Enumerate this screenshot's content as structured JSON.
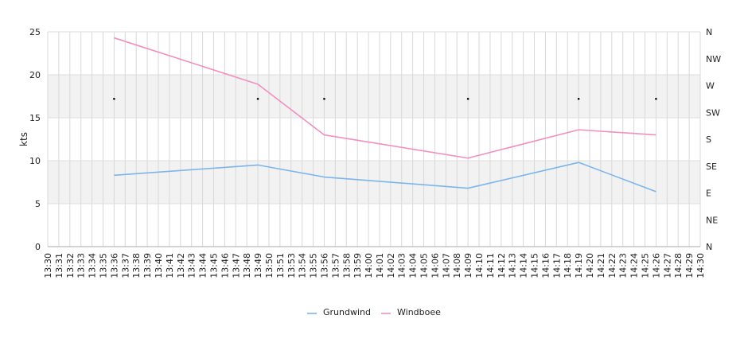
{
  "chart_data": {
    "type": "line",
    "ylabel": "kts",
    "ylim": [
      0,
      25
    ],
    "y_ticks": [
      0,
      5,
      10,
      15,
      20,
      25
    ],
    "right_axis_ticks": [
      "N",
      "NE",
      "E",
      "SE",
      "S",
      "SW",
      "W",
      "NW",
      "N"
    ],
    "bands": [
      [
        5,
        10
      ],
      [
        15,
        20
      ]
    ],
    "grid": true,
    "legend_position": "bottom-center",
    "x_labels": [
      "13:30",
      "13:31",
      "13:32",
      "13:33",
      "13:34",
      "13:35",
      "13:36",
      "13:37",
      "13:38",
      "13:39",
      "13:40",
      "13:41",
      "13:42",
      "13:43",
      "13:44",
      "13:45",
      "13:46",
      "13:47",
      "13:48",
      "13:49",
      "13:50",
      "13:51",
      "13:53",
      "13:54",
      "13:55",
      "13:56",
      "13:57",
      "13:58",
      "13:59",
      "14:00",
      "14:01",
      "14:02",
      "14:03",
      "14:04",
      "14:05",
      "14:06",
      "14:07",
      "14:08",
      "14:09",
      "14:10",
      "14:11",
      "14:12",
      "14:13",
      "14:14",
      "14:15",
      "14:16",
      "14:17",
      "14:18",
      "14:19",
      "14:20",
      "14:21",
      "14:22",
      "14:23",
      "14:24",
      "14:25",
      "14:26",
      "14:27",
      "14:28",
      "14:29",
      "14:30"
    ],
    "series": [
      {
        "name": "Grundwind",
        "color": "#7cb5ec",
        "x": [
          "13:36",
          "13:49",
          "13:56",
          "14:09",
          "14:19",
          "14:26"
        ],
        "values": [
          8.3,
          9.5,
          8.1,
          6.8,
          9.8,
          6.4
        ]
      },
      {
        "name": "Windboee",
        "color": "#f28fbf",
        "x": [
          "13:36",
          "13:49",
          "13:56",
          "14:09",
          "14:19",
          "14:26"
        ],
        "values": [
          24.3,
          18.9,
          13.0,
          10.3,
          13.6,
          13.0
        ]
      }
    ],
    "direction_markers": {
      "x": [
        "13:36",
        "13:49",
        "13:56",
        "14:09",
        "14:19",
        "14:26"
      ],
      "values": [
        17.2,
        17.2,
        17.2,
        17.2,
        17.2,
        17.2
      ]
    }
  }
}
